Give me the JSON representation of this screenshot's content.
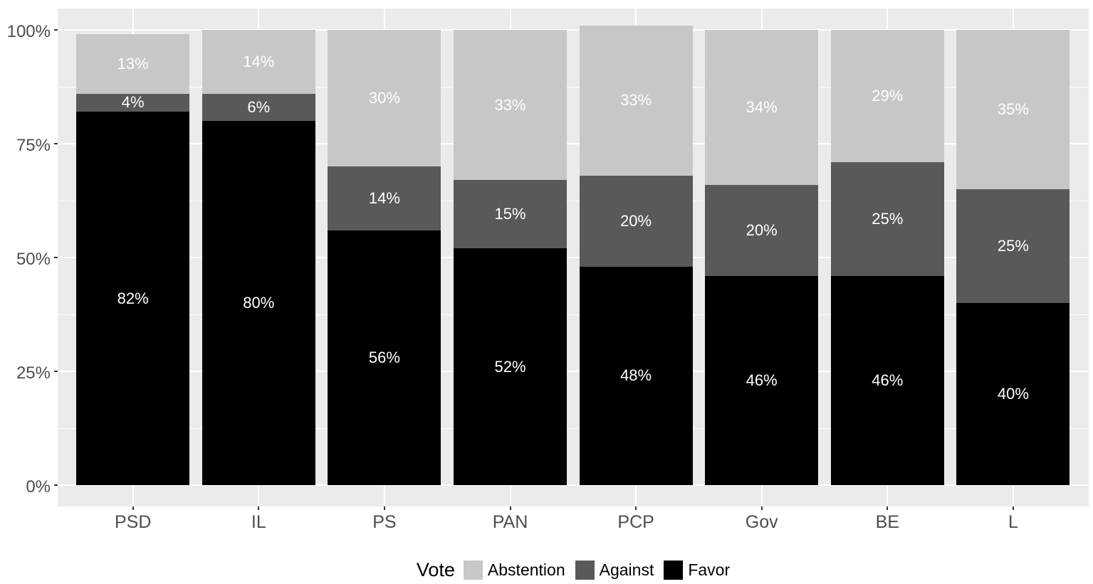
{
  "chart_data": {
    "type": "bar",
    "variant": "stacked-percent",
    "title": "",
    "xlabel": "",
    "ylabel": "",
    "categories": [
      "PSD",
      "IL",
      "PS",
      "PAN",
      "PCP",
      "Gov",
      "BE",
      "L"
    ],
    "series": [
      {
        "name": "Favor",
        "color": "#000000",
        "values": [
          82,
          80,
          56,
          52,
          48,
          46,
          46,
          40
        ]
      },
      {
        "name": "Against",
        "color": "#595959",
        "values": [
          4,
          6,
          14,
          15,
          20,
          20,
          25,
          25
        ]
      },
      {
        "name": "Abstention",
        "color": "#c7c7c7",
        "values": [
          13,
          14,
          30,
          33,
          33,
          34,
          29,
          35
        ]
      }
    ],
    "stack_order_bottom_to_top": [
      "Favor",
      "Against",
      "Abstention"
    ],
    "value_label_suffix": "%",
    "y_axis": {
      "range": [
        0,
        100
      ],
      "major_ticks": [
        {
          "value": 0,
          "label": "0%"
        },
        {
          "value": 25,
          "label": "25%"
        },
        {
          "value": 50,
          "label": "50%"
        },
        {
          "value": 75,
          "label": "75%"
        },
        {
          "value": 100,
          "label": "100%"
        }
      ],
      "minor_ticks": [
        12.5,
        37.5,
        62.5,
        87.5
      ]
    },
    "legend": {
      "title": "Vote",
      "position": "bottom",
      "items": [
        {
          "label": "Abstention",
          "color": "#c7c7c7"
        },
        {
          "label": "Against",
          "color": "#595959"
        },
        {
          "label": "Favor",
          "color": "#000000"
        }
      ]
    },
    "colors": {
      "background": "#ffffff",
      "panel_background": "#ebebeb",
      "gridline": "#ffffff",
      "axis_text": "#4d4d4d",
      "tick_mark": "#333333",
      "bar_value_label": "#ffffff"
    }
  }
}
